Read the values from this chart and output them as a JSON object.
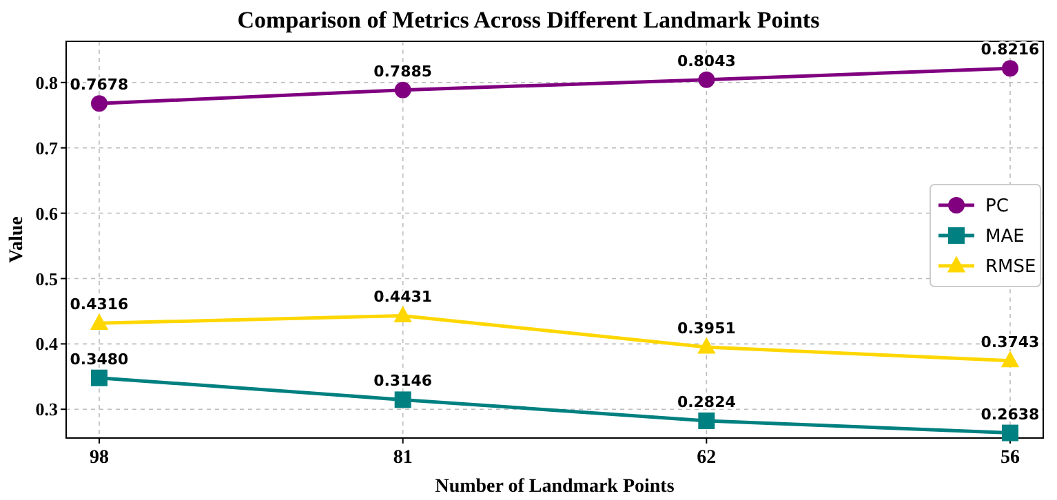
{
  "chart_data": {
    "type": "line",
    "title": "Comparison of Metrics Across Different Landmark Points",
    "xlabel": "Number of Landmark Points",
    "ylabel": "Value",
    "categories": [
      "98",
      "81",
      "62",
      "56"
    ],
    "ylim": [
      0.256,
      0.863
    ],
    "yticks": [
      {
        "value": 0.3,
        "label": "0.3"
      },
      {
        "value": 0.4,
        "label": "0.4"
      },
      {
        "value": 0.5,
        "label": "0.5"
      },
      {
        "value": 0.6,
        "label": "0.6"
      },
      {
        "value": 0.7,
        "label": "0.7"
      },
      {
        "value": 0.8,
        "label": "0.8"
      }
    ],
    "grid": true,
    "legend": "right",
    "line_style": "solid",
    "series": [
      {
        "name": "PC",
        "color": "#800080",
        "marker": "circle",
        "values": [
          0.7678,
          0.7885,
          0.8043,
          0.8216
        ],
        "value_labels": [
          "0.7678",
          "0.7885",
          "0.8043",
          "0.8216"
        ]
      },
      {
        "name": "MAE",
        "color": "#008080",
        "marker": "square",
        "values": [
          0.348,
          0.3146,
          0.2824,
          0.2638
        ],
        "value_labels": [
          "0.3480",
          "0.3146",
          "0.2824",
          "0.2638"
        ]
      },
      {
        "name": "RMSE",
        "color": "#ffd700",
        "marker": "triangle",
        "values": [
          0.4316,
          0.4431,
          0.3951,
          0.3743
        ],
        "value_labels": [
          "0.4316",
          "0.4431",
          "0.3951",
          "0.3743"
        ]
      }
    ]
  }
}
